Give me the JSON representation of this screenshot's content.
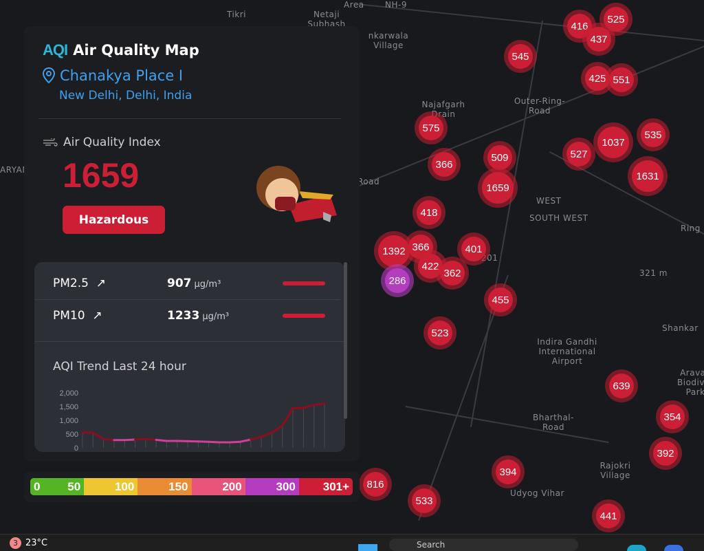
{
  "app": {
    "logo": "AQI",
    "title": "Air Quality Map"
  },
  "location": {
    "name": "Chanakya Place I",
    "city": "New Delhi, Delhi, India"
  },
  "aqi": {
    "label": "Air Quality Index",
    "value": "1659",
    "status": "Hazardous",
    "status_color": "#cc1f36"
  },
  "pollutants": [
    {
      "name": "PM2.5",
      "value": "907",
      "unit": "µg/m³",
      "trend": "↗"
    },
    {
      "name": "PM10",
      "value": "1233",
      "unit": "µg/m³",
      "trend": "↗"
    }
  ],
  "chart_data": {
    "type": "area",
    "title": "AQI Trend Last 24 hour",
    "yticks": [
      "2,000",
      "1,500",
      "1,000",
      "500",
      "0"
    ],
    "ylim": [
      0,
      2000
    ],
    "values": [
      560,
      550,
      320,
      280,
      280,
      300,
      320,
      290,
      250,
      250,
      240,
      230,
      220,
      200,
      200,
      220,
      300,
      400,
      550,
      800,
      1440,
      1450,
      1560,
      1610
    ]
  },
  "legend": [
    {
      "label": "0",
      "label2": "50",
      "color": "#55b423"
    },
    {
      "label": "100",
      "color": "#eec632"
    },
    {
      "label": "150",
      "color": "#e98c33"
    },
    {
      "label": "200",
      "color": "#e8537a"
    },
    {
      "label": "300",
      "color": "#b43cbe"
    },
    {
      "label": "301+",
      "color": "#cc1f36"
    }
  ],
  "map": {
    "markers": [
      "545",
      "416",
      "525",
      "437",
      "425",
      "551",
      "575",
      "366",
      "509",
      "1659",
      "527",
      "1037",
      "535",
      "1631",
      "418",
      "1392",
      "366",
      "422",
      "362",
      "401",
      "286",
      "455",
      "523",
      "639",
      "354",
      "392",
      "394",
      "816",
      "533",
      "441"
    ],
    "labels": [
      "Tikri",
      "Netaji Subhash",
      "Area",
      "NH-9",
      "nkarwala Village",
      "Najafgarh Drain",
      "Outer-Ring-Road",
      "Road",
      "WEST",
      "SOUTH WEST",
      "201",
      "321 m",
      "Ring",
      "Indira Gandhi International Airport",
      "Bharthal-Road",
      "Rajokri Village",
      "Udyog Vihar",
      "Shankar",
      "Aravali Biodiver Park",
      "ARYANA"
    ]
  },
  "taskbar": {
    "weather_badge": "3",
    "temperature": "23°C",
    "search": "Search"
  }
}
